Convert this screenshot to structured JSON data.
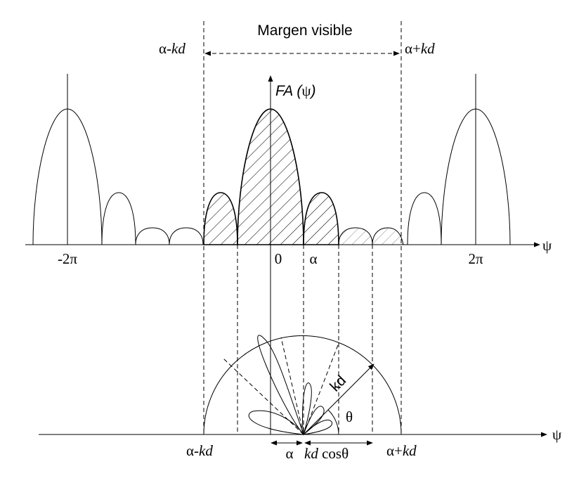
{
  "diagram": {
    "margin_title": "Margen visible",
    "visible_left": {
      "prefix": "α-",
      "suffix": "kd"
    },
    "visible_right": {
      "prefix": "α+",
      "suffix": "kd"
    },
    "fa_axis": {
      "main": "FA",
      "paren_open": " (",
      "var": "ψ",
      "paren_close": ")"
    },
    "psi_axis_label": "ψ",
    "ticks": {
      "minus_two_pi": "-2π",
      "zero": "0",
      "alpha": "α",
      "two_pi": "2π"
    },
    "polar": {
      "kd_label": "kd",
      "theta_label": "θ",
      "left_label": {
        "prefix": "α-",
        "suffix": "kd"
      },
      "right_label": {
        "prefix": "α+",
        "suffix": "kd"
      },
      "alpha_label": "α",
      "kdcos_label": {
        "kd": "kd",
        "cos": " cosθ"
      },
      "psi_label": "ψ"
    }
  }
}
